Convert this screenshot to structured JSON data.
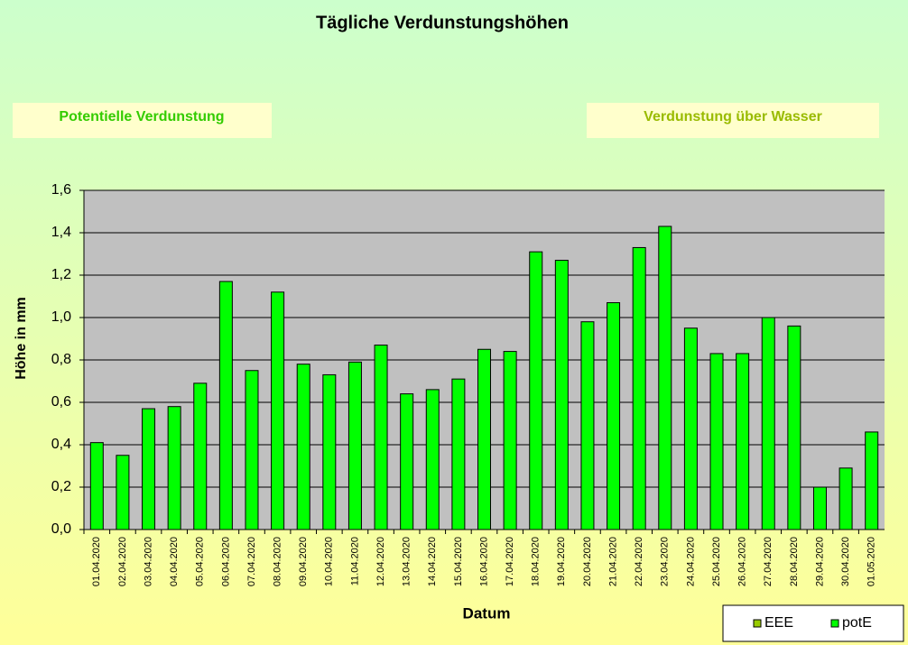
{
  "chart_data": {
    "type": "bar",
    "title": "Tägliche Verdunstungshöhen",
    "annotations": [
      "Potentielle Verdunstung",
      "Verdunstung über Wasser"
    ],
    "y_label": "Höhe in mm",
    "x_label": "Datum",
    "categories": [
      "01.04.2020",
      "02.04.2020",
      "03.04.2020",
      "04.04.2020",
      "05.04.2020",
      "06.04.2020",
      "07.04.2020",
      "08.04.2020",
      "09.04.2020",
      "10.04.2020",
      "11.04.2020",
      "12.04.2020",
      "13.04.2020",
      "14.04.2020",
      "15.04.2020",
      "16.04.2020",
      "17.04.2020",
      "18.04.2020",
      "19.04.2020",
      "20.04.2020",
      "21.04.2020",
      "22.04.2020",
      "23.04.2020",
      "24.04.2020",
      "25.04.2020",
      "26.04.2020",
      "27.04.2020",
      "28.04.2020",
      "29.04.2020",
      "30.04.2020",
      "01.05.2020"
    ],
    "series": [
      {
        "name": "EEE",
        "color": "#99cc00",
        "values": [
          null,
          null,
          null,
          null,
          null,
          null,
          null,
          null,
          null,
          null,
          null,
          null,
          null,
          null,
          null,
          null,
          null,
          null,
          null,
          null,
          null,
          null,
          null,
          null,
          null,
          null,
          null,
          null,
          null,
          null,
          null
        ]
      },
      {
        "name": "potE",
        "color": "#00ff00",
        "values": [
          0.41,
          0.35,
          0.57,
          0.58,
          0.69,
          1.17,
          0.75,
          1.12,
          0.78,
          0.73,
          0.79,
          0.87,
          0.64,
          0.66,
          0.71,
          0.85,
          0.84,
          1.31,
          1.27,
          0.98,
          1.07,
          1.33,
          1.43,
          0.95,
          0.83,
          0.83,
          1.0,
          0.96,
          0.2,
          0.29,
          0.46
        ]
      }
    ],
    "ylim": [
      0,
      1.6
    ],
    "yticks": [
      {
        "value": 0,
        "label": "0,0"
      },
      {
        "value": 0.2,
        "label": "0,2"
      },
      {
        "value": 0.4,
        "label": "0,4"
      },
      {
        "value": 0.6,
        "label": "0,6"
      },
      {
        "value": 0.8,
        "label": "0,8"
      },
      {
        "value": 1.0,
        "label": "1,0"
      },
      {
        "value": 1.2,
        "label": "1,2"
      },
      {
        "value": 1.4,
        "label": "1,4"
      },
      {
        "value": 1.6,
        "label": "1,6"
      }
    ],
    "grid": true,
    "legend": "bottom-right"
  }
}
